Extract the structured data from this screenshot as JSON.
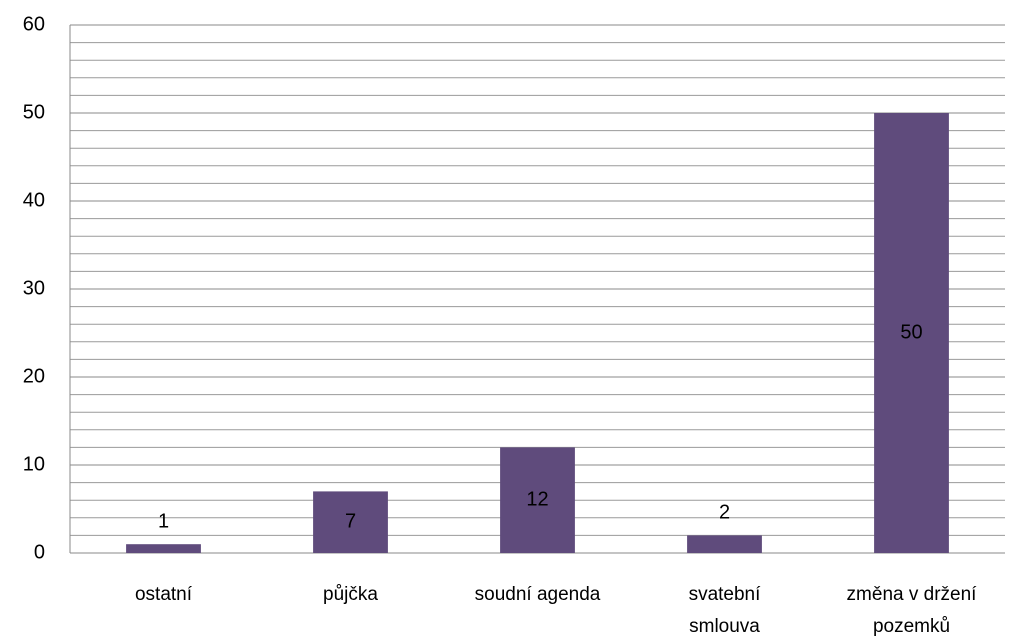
{
  "chart_data": {
    "type": "bar",
    "categories": [
      "ostatní",
      "půjčka",
      "soudní agenda",
      "svatební smlouva",
      "změna v držení pozemků"
    ],
    "values": [
      1,
      7,
      12,
      2,
      50
    ],
    "color": "#5f4b7c",
    "ylim": [
      0,
      60
    ],
    "yticks": [
      0,
      10,
      20,
      30,
      40,
      50,
      60
    ],
    "yminorticks": [
      2,
      4,
      6,
      8,
      12,
      14,
      16,
      18,
      22,
      24,
      26,
      28,
      32,
      34,
      36,
      38,
      42,
      44,
      46,
      48,
      52,
      54,
      56,
      58
    ],
    "grid": true
  }
}
